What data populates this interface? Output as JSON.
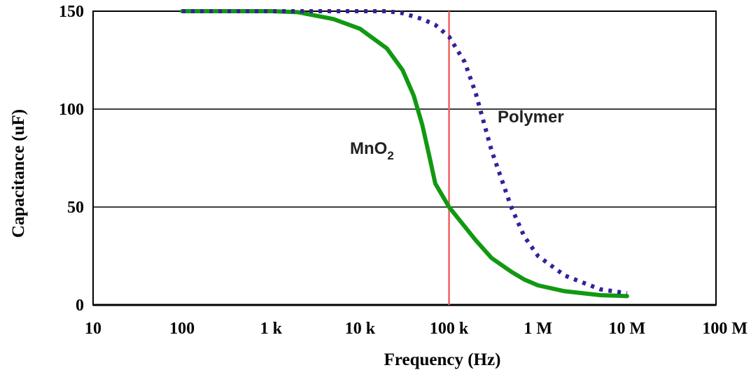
{
  "chart_data": {
    "type": "line",
    "xlabel": "Frequency (Hz)",
    "ylabel": "Capacitance (uF)",
    "x_scale": "log",
    "xlim": [
      10,
      100000000
    ],
    "ylim": [
      0,
      150
    ],
    "x_ticks": [
      {
        "value": 10,
        "label": "10"
      },
      {
        "value": 100,
        "label": "100"
      },
      {
        "value": 1000,
        "label": "1 k"
      },
      {
        "value": 10000,
        "label": "10 k"
      },
      {
        "value": 100000,
        "label": "100 k"
      },
      {
        "value": 1000000,
        "label": "1 M"
      },
      {
        "value": 10000000,
        "label": "10 M"
      },
      {
        "value": 100000000,
        "label": "100 M"
      }
    ],
    "y_ticks": [
      {
        "value": 0,
        "label": "0"
      },
      {
        "value": 50,
        "label": "50"
      },
      {
        "value": 100,
        "label": "100"
      },
      {
        "value": 150,
        "label": "150"
      }
    ],
    "grid": "horizontal",
    "reference_line": {
      "x": 100000,
      "color": "#f06060"
    },
    "series": [
      {
        "name": "MnO2",
        "label_main": "MnO",
        "label_sub": "2",
        "color": "#119911",
        "style": "solid",
        "x": [
          100,
          1000,
          2000,
          5000,
          10000,
          20000,
          30000,
          40000,
          50000,
          60000,
          70000,
          100000,
          200000,
          300000,
          500000,
          700000,
          1000000,
          2000000,
          5000000,
          10000000
        ],
        "y": [
          150,
          150,
          149.5,
          146,
          141,
          131,
          120,
          107,
          92,
          76,
          62,
          50,
          33,
          24,
          17,
          13,
          10,
          7,
          5,
          4.5
        ]
      },
      {
        "name": "Polymer",
        "label_main": "Polymer",
        "color": "#3a1e9a",
        "style": "dotted",
        "x": [
          100,
          1000,
          10000,
          20000,
          30000,
          50000,
          70000,
          100000,
          150000,
          200000,
          300000,
          500000,
          700000,
          1000000,
          2000000,
          5000000,
          10000000
        ],
        "y": [
          150,
          150,
          150,
          150,
          149,
          146,
          143,
          137,
          124,
          108,
          79,
          50,
          35,
          25,
          15,
          8,
          6
        ]
      }
    ]
  }
}
